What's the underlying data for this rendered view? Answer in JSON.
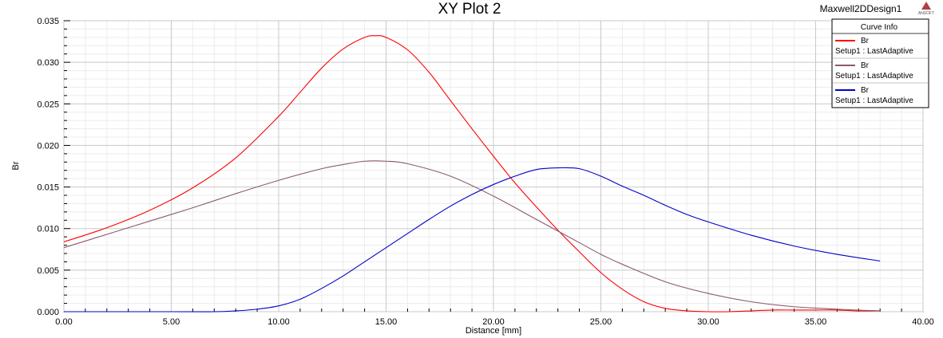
{
  "header": {
    "title": "XY Plot 2",
    "design_name": "Maxwell2DDesign1",
    "logo_text": "ANSOFT"
  },
  "legend": {
    "title": "Curve Info"
  },
  "chart_data": {
    "type": "line",
    "title": "XY Plot 2",
    "xlabel": "Distance [mm]",
    "ylabel": "Br",
    "xlim": [
      0,
      40
    ],
    "ylim": [
      0,
      0.035
    ],
    "x_ticks": [
      "0.00",
      "5.00",
      "10.00",
      "15.00",
      "20.00",
      "25.00",
      "30.00",
      "35.00",
      "40.00"
    ],
    "y_ticks": [
      "0.000",
      "0.005",
      "0.010",
      "0.015",
      "0.020",
      "0.025",
      "0.030",
      "0.035"
    ],
    "grid": true,
    "legend_position": "top-right",
    "series": [
      {
        "name": "Br",
        "setup": "Setup1 : LastAdaptive",
        "color": "#ff0000",
        "x": [
          0,
          2,
          4,
          6,
          8,
          10,
          11,
          12,
          13,
          14,
          14.5,
          15,
          16,
          17,
          18,
          19,
          20,
          21,
          22,
          23,
          24,
          25,
          26,
          27,
          28,
          29,
          30,
          31,
          32,
          33,
          34,
          35,
          36,
          37,
          38
        ],
        "y": [
          0.0084,
          0.0101,
          0.0122,
          0.0149,
          0.0185,
          0.0235,
          0.0264,
          0.0293,
          0.0316,
          0.033,
          0.0332,
          0.033,
          0.0315,
          0.0288,
          0.0254,
          0.022,
          0.0187,
          0.0155,
          0.0126,
          0.0098,
          0.0072,
          0.0047,
          0.0027,
          0.0012,
          0.0004,
          0.0001,
          0.0,
          0.0,
          0.0001,
          0.0002,
          0.0002,
          0.0002,
          0.0002,
          0.0001,
          0.0001
        ]
      },
      {
        "name": "Br",
        "setup": "Setup1 : LastAdaptive",
        "color": "#8b5a6b",
        "x": [
          0,
          2,
          4,
          6,
          8,
          10,
          12,
          13,
          14,
          15,
          16,
          18,
          20,
          22,
          24,
          25,
          26,
          28,
          30,
          32,
          34,
          36,
          38
        ],
        "y": [
          0.0077,
          0.0093,
          0.0109,
          0.0125,
          0.0142,
          0.0158,
          0.0172,
          0.0177,
          0.0181,
          0.0181,
          0.0178,
          0.0163,
          0.0139,
          0.0111,
          0.0083,
          0.0069,
          0.0057,
          0.0036,
          0.0022,
          0.0012,
          0.0006,
          0.0003,
          0.0001
        ]
      },
      {
        "name": "Br",
        "setup": "Setup1 : LastAdaptive",
        "color": "#0000c8",
        "x": [
          0,
          5,
          7,
          8,
          9,
          10,
          11,
          12,
          13,
          14,
          15,
          16,
          17,
          18,
          19,
          20,
          21,
          22,
          23,
          24,
          25,
          26,
          27,
          28,
          29,
          30,
          32,
          34,
          36,
          38
        ],
        "y": [
          0.0,
          0.0,
          0.0,
          0.0001,
          0.0003,
          0.0007,
          0.0015,
          0.0028,
          0.0043,
          0.006,
          0.0077,
          0.0094,
          0.0111,
          0.0127,
          0.0141,
          0.0153,
          0.0163,
          0.0171,
          0.0173,
          0.0172,
          0.0163,
          0.0151,
          0.014,
          0.0128,
          0.0117,
          0.0108,
          0.0092,
          0.0079,
          0.0069,
          0.0061
        ]
      }
    ]
  }
}
